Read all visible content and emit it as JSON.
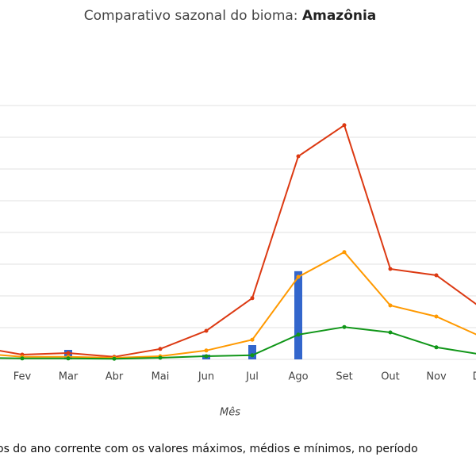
{
  "chart_data": {
    "type": "line",
    "title": "Comparativo sazonal do bioma:",
    "title_highlight": "Amazônia",
    "x_label": "Mês",
    "caption": "os do ano corrente com os valores máximos, médios e mínimos, no período",
    "categories": [
      null,
      "Fev",
      "Mar",
      "Abr",
      "Mai",
      "Jun",
      "Jul",
      "Ago",
      "Set",
      "Out",
      "Nov",
      "Dez"
    ],
    "ylim": [
      0,
      8
    ],
    "yticks": [
      0,
      1,
      2,
      3,
      4,
      5,
      6,
      7,
      8
    ],
    "grid": true,
    "series": [
      {
        "type": "bar",
        "color": "#3366cc",
        "values": [
          0,
          0,
          0.3,
          0,
          0,
          0.15,
          0.45,
          2.78,
          null,
          null,
          null,
          null
        ]
      },
      {
        "type": "line",
        "color": "#dc3912",
        "values": [
          0.4,
          0.15,
          0.2,
          0.08,
          0.33,
          0.9,
          1.93,
          6.4,
          7.38,
          2.85,
          2.65,
          1.6
        ]
      },
      {
        "type": "line",
        "color": "#ff9900",
        "values": [
          0.2,
          0.08,
          0.08,
          0.05,
          0.1,
          0.28,
          0.62,
          2.6,
          3.38,
          1.7,
          1.35,
          0.7
        ]
      },
      {
        "type": "line",
        "color": "#109618",
        "values": [
          0.05,
          0.03,
          0.03,
          0.02,
          0.05,
          0.1,
          0.13,
          0.78,
          1.02,
          0.85,
          0.38,
          0.15
        ]
      }
    ]
  }
}
